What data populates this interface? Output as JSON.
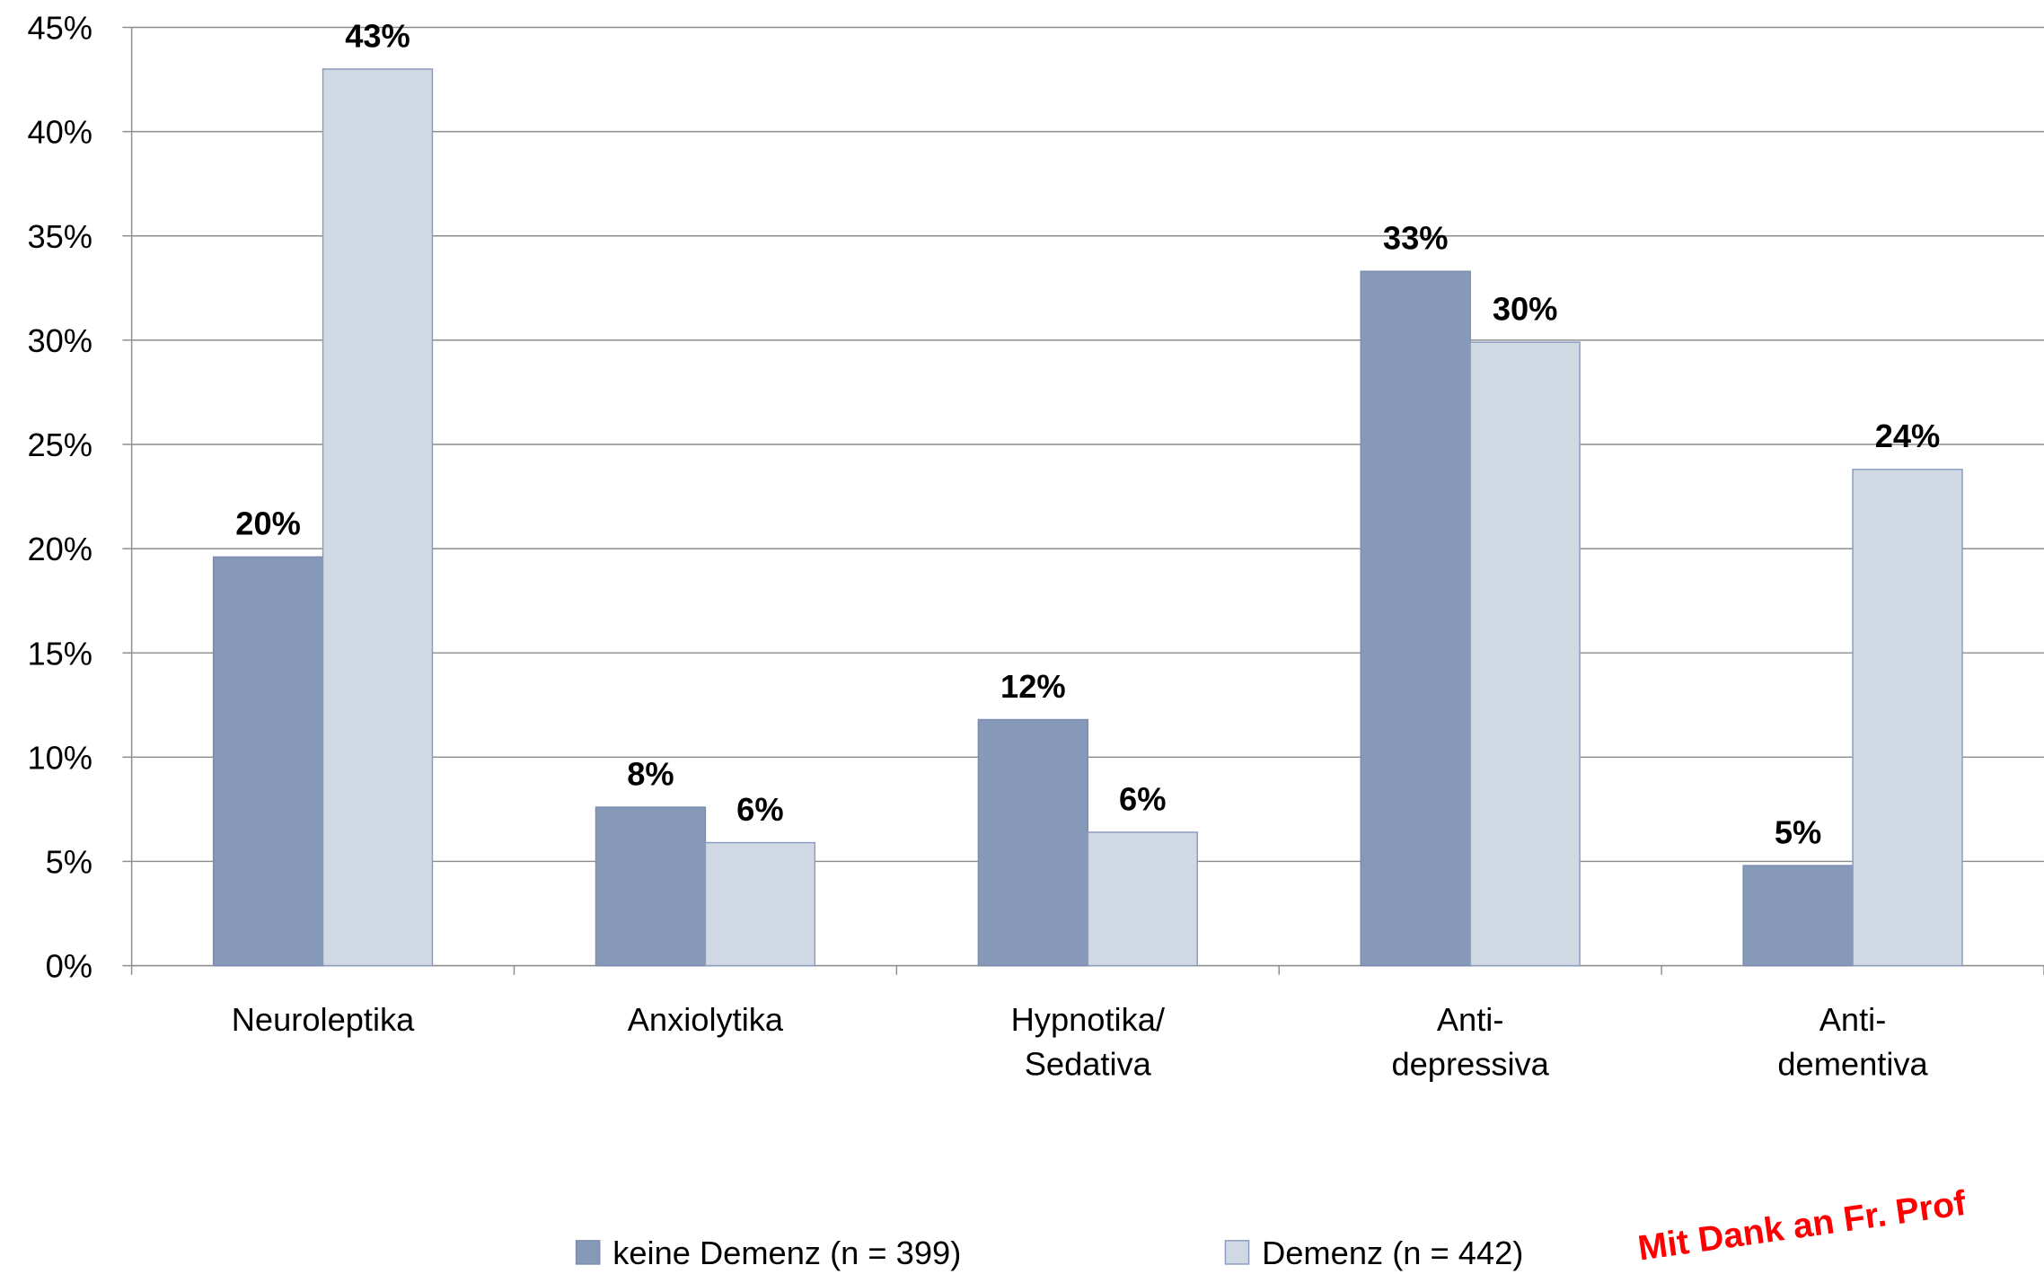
{
  "chart_data": {
    "type": "bar",
    "categories": [
      [
        "Neuroleptika"
      ],
      [
        "Anxiolytika"
      ],
      [
        "Hypnotika/",
        "Sedativa"
      ],
      [
        "Anti-",
        "depressiva"
      ],
      [
        "Anti-",
        "dementiva"
      ]
    ],
    "series": [
      {
        "name": "keine Demenz (n = 399)",
        "color": "#8799b9",
        "values": [
          19.6,
          7.6,
          11.8,
          33.3,
          4.8
        ],
        "value_labels": [
          "20%",
          "8%",
          "12%",
          "33%",
          "5%"
        ]
      },
      {
        "name": "Demenz (n = 442)",
        "color": "#d0d8e4",
        "values": [
          43,
          5.9,
          6.4,
          29.9,
          23.8
        ],
        "value_labels": [
          "43%",
          "6%",
          "6%",
          "30%",
          "24%"
        ]
      }
    ],
    "ylim": [
      0,
      45
    ],
    "yticks": [
      {
        "value": 0,
        "label": "0%"
      },
      {
        "value": 5,
        "label": "5%"
      },
      {
        "value": 10,
        "label": "10%"
      },
      {
        "value": 15,
        "label": "15%"
      },
      {
        "value": 20,
        "label": "20%"
      },
      {
        "value": 25,
        "label": "25%"
      },
      {
        "value": 30,
        "label": "30%"
      },
      {
        "value": 35,
        "label": "35%"
      },
      {
        "value": 40,
        "label": "40%"
      },
      {
        "value": 45,
        "label": "45%"
      }
    ],
    "grid": true,
    "legend": "bottom",
    "annotation": "Mit Dank an Fr. Prof"
  }
}
